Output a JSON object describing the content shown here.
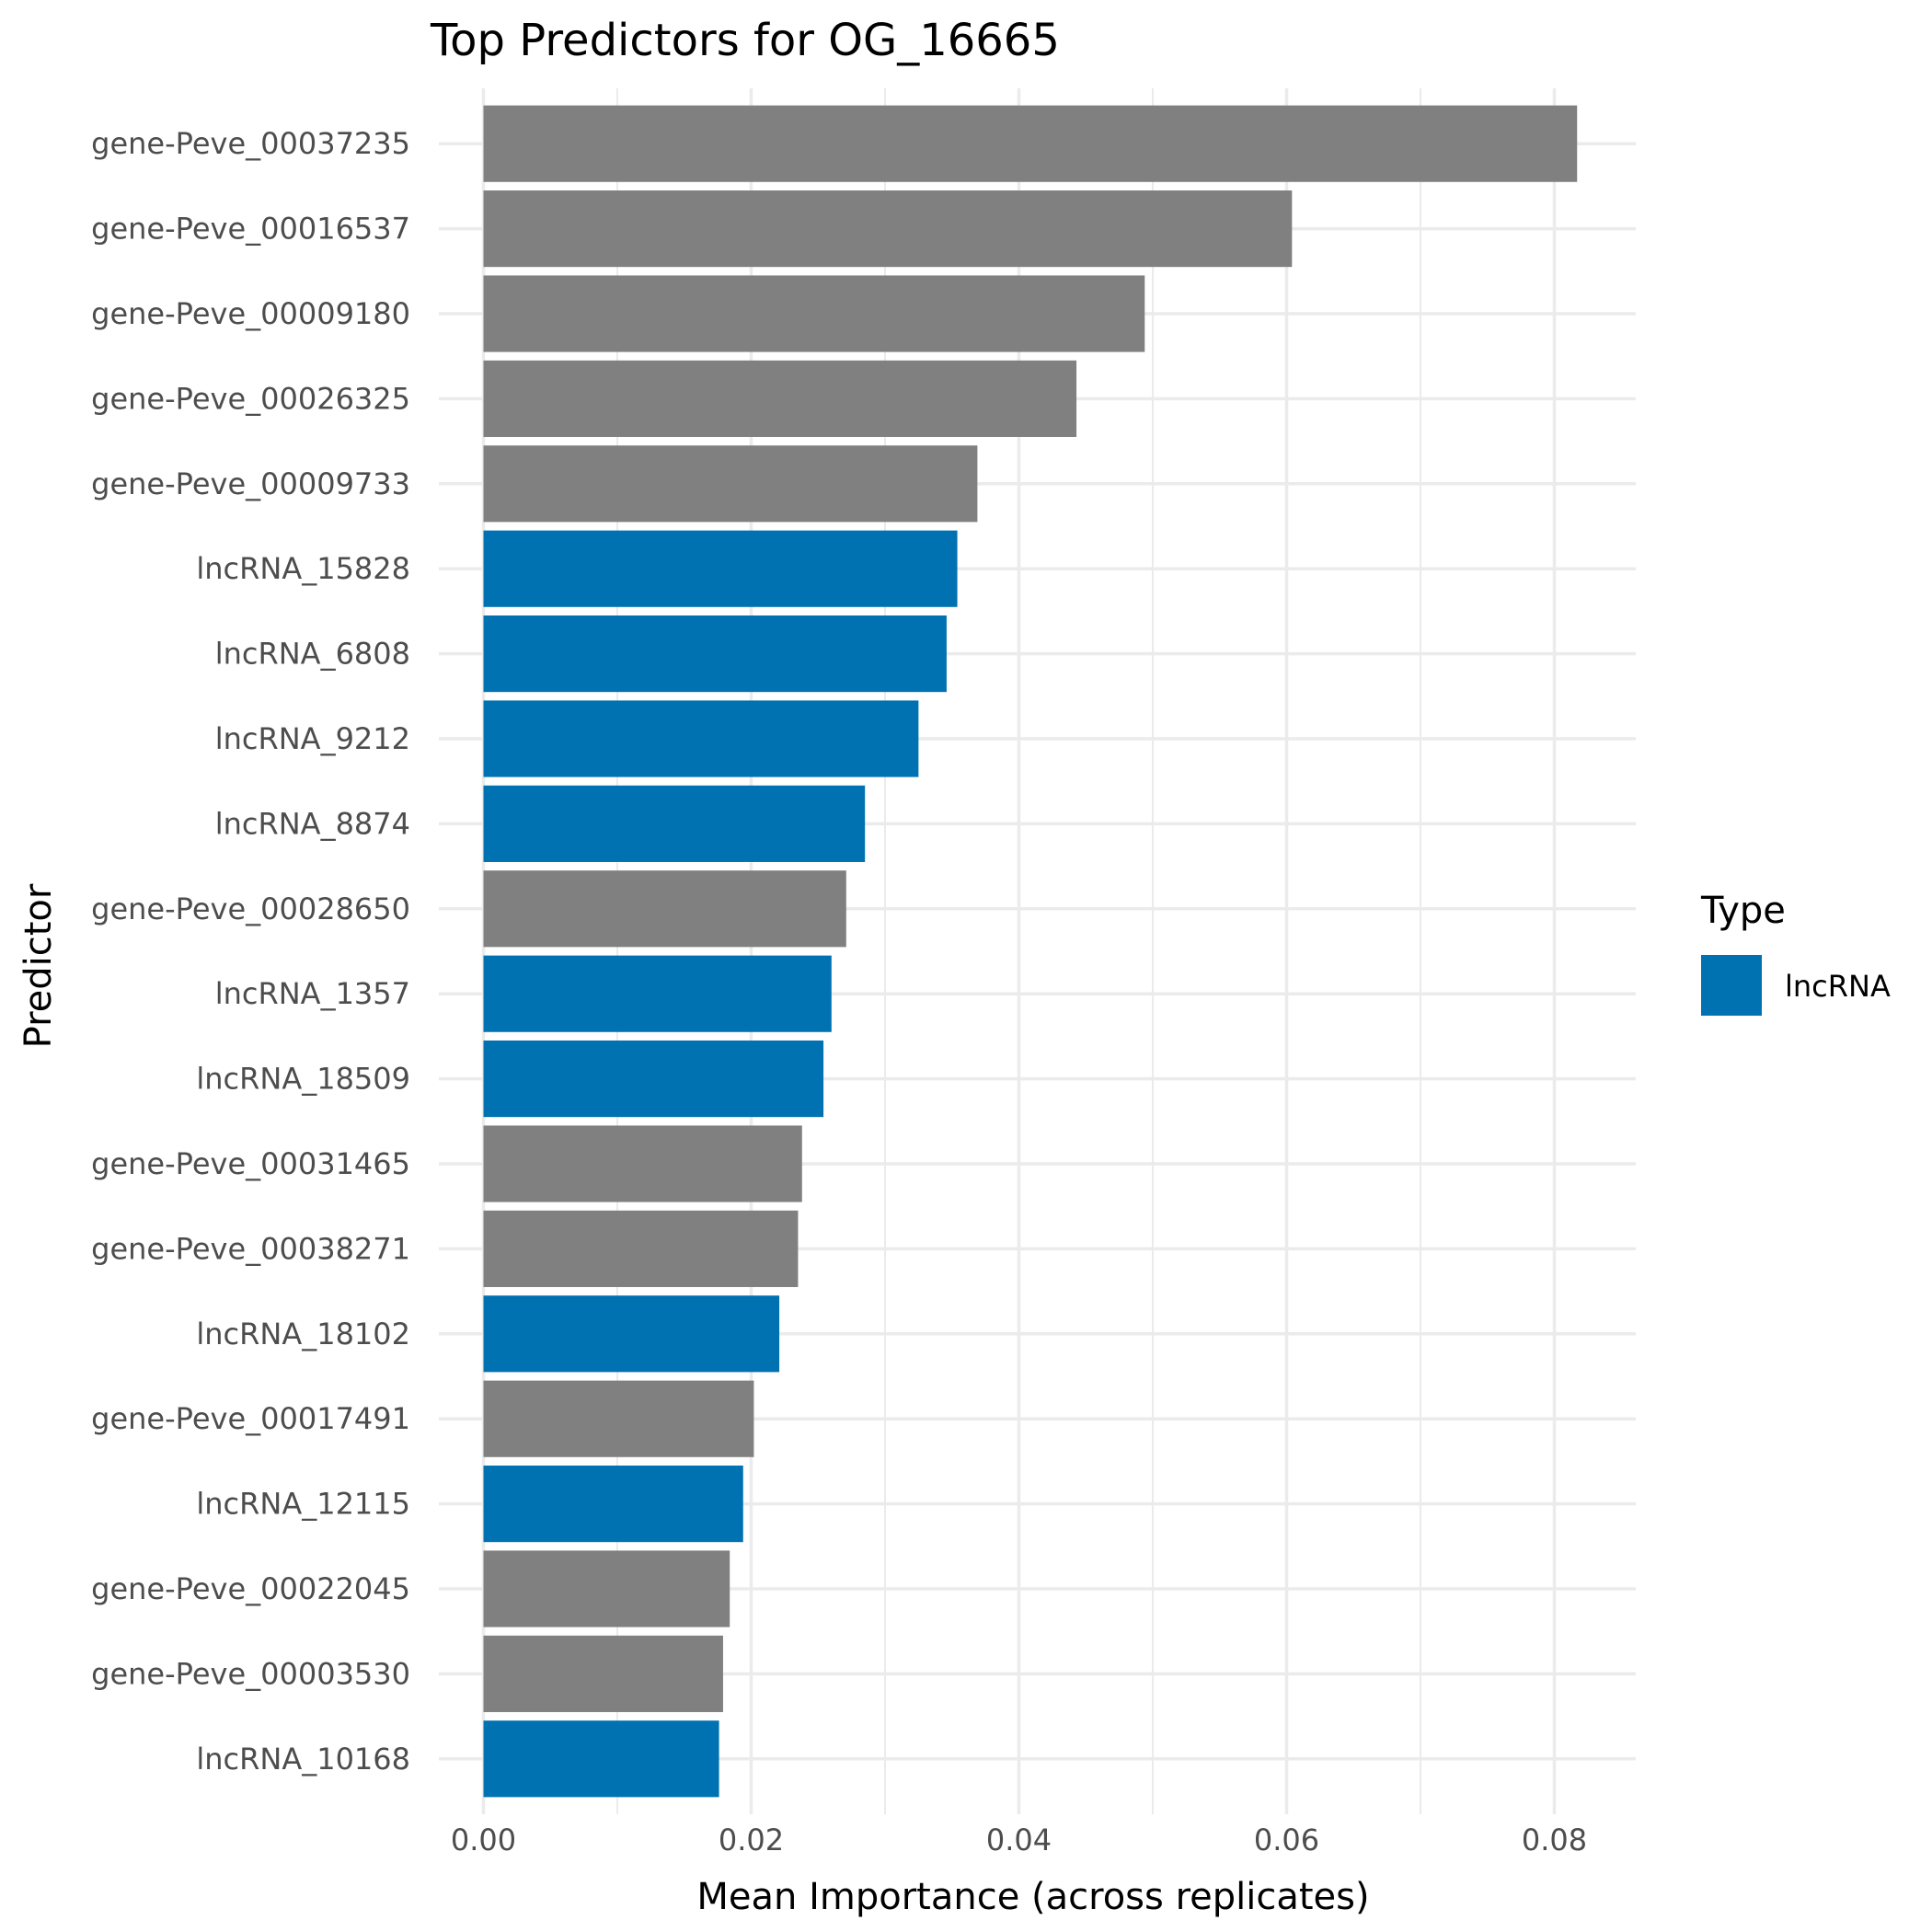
{
  "chart_data": {
    "type": "bar",
    "orientation": "horizontal",
    "title": "Top Predictors for OG_16665",
    "xlabel": "Mean Importance (across replicates)",
    "ylabel": "Predictor",
    "xlim": [
      0,
      0.0855
    ],
    "x_ticks": [
      "0.00",
      "0.02",
      "0.04",
      "0.06",
      "0.08"
    ],
    "x_tick_values": [
      0,
      0.02,
      0.04,
      0.06,
      0.08
    ],
    "grid": true,
    "legend": {
      "title": "Type",
      "placement": "right",
      "entries": [
        {
          "label": "lncRNA",
          "color": "#0072B2"
        }
      ]
    },
    "colors": {
      "gene": "#808080",
      "lncRNA": "#0072B2"
    },
    "bars": [
      {
        "label": "gene-Peve_00037235",
        "value": 0.0817,
        "type": "gene"
      },
      {
        "label": "gene-Peve_00016537",
        "value": 0.0604,
        "type": "gene"
      },
      {
        "label": "gene-Peve_00009180",
        "value": 0.0494,
        "type": "gene"
      },
      {
        "label": "gene-Peve_00026325",
        "value": 0.0443,
        "type": "gene"
      },
      {
        "label": "gene-Peve_00009733",
        "value": 0.0369,
        "type": "gene"
      },
      {
        "label": "lncRNA_15828",
        "value": 0.0354,
        "type": "lncRNA"
      },
      {
        "label": "lncRNA_6808",
        "value": 0.0346,
        "type": "lncRNA"
      },
      {
        "label": "lncRNA_9212",
        "value": 0.0325,
        "type": "lncRNA"
      },
      {
        "label": "lncRNA_8874",
        "value": 0.0285,
        "type": "lncRNA"
      },
      {
        "label": "gene-Peve_00028650",
        "value": 0.0271,
        "type": "gene"
      },
      {
        "label": "lncRNA_1357",
        "value": 0.026,
        "type": "lncRNA"
      },
      {
        "label": "lncRNA_18509",
        "value": 0.0254,
        "type": "lncRNA"
      },
      {
        "label": "gene-Peve_00031465",
        "value": 0.0238,
        "type": "gene"
      },
      {
        "label": "gene-Peve_00038271",
        "value": 0.0235,
        "type": "gene"
      },
      {
        "label": "lncRNA_18102",
        "value": 0.0221,
        "type": "lncRNA"
      },
      {
        "label": "gene-Peve_00017491",
        "value": 0.0202,
        "type": "gene"
      },
      {
        "label": "lncRNA_12115",
        "value": 0.0194,
        "type": "lncRNA"
      },
      {
        "label": "gene-Peve_00022045",
        "value": 0.0184,
        "type": "gene"
      },
      {
        "label": "gene-Peve_00003530",
        "value": 0.0179,
        "type": "gene"
      },
      {
        "label": "lncRNA_10168",
        "value": 0.0176,
        "type": "lncRNA"
      }
    ]
  }
}
